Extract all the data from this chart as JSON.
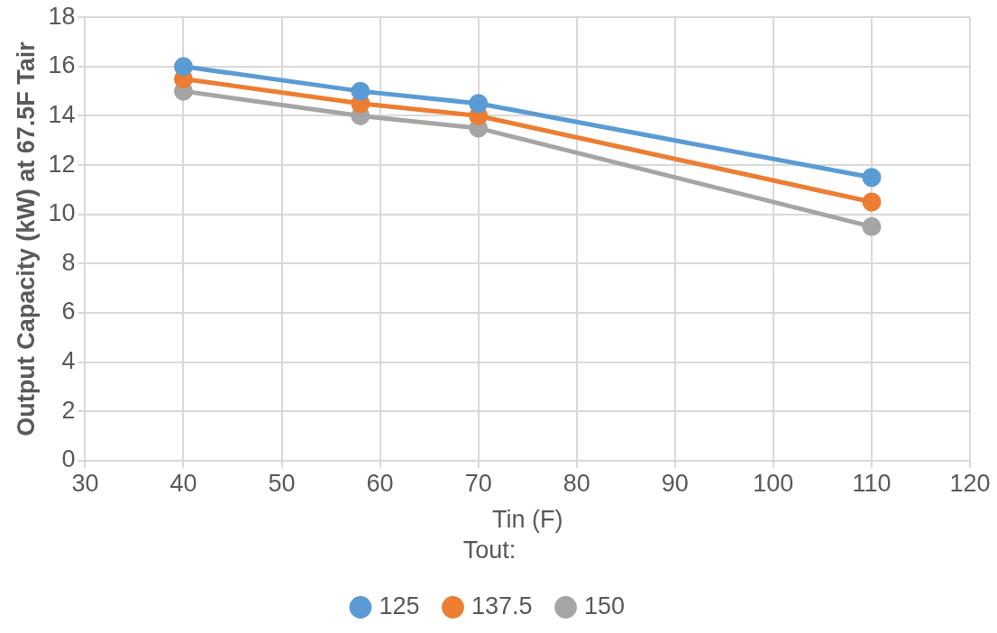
{
  "chart_data": {
    "type": "line",
    "xlabel": "Tin (F)",
    "ylabel": "Output Capacity (kW) at 67.5F Tair",
    "legend_title": "Tout:",
    "x": [
      40,
      58,
      70,
      110
    ],
    "series": [
      {
        "name": "125",
        "color": "#5b9bd5",
        "values": [
          16,
          15,
          14.5,
          11.5
        ]
      },
      {
        "name": "137.5",
        "color": "#ed7d31",
        "values": [
          15.5,
          14.5,
          14,
          10.5
        ]
      },
      {
        "name": "150",
        "color": "#a5a5a5",
        "values": [
          15,
          14,
          13.5,
          9.5
        ]
      }
    ],
    "xlim": [
      30,
      120
    ],
    "xticks": [
      30,
      40,
      50,
      60,
      70,
      80,
      90,
      100,
      110,
      120
    ],
    "ylim": [
      0,
      18
    ],
    "yticks": [
      0,
      2,
      4,
      6,
      8,
      10,
      12,
      14,
      16,
      18
    ],
    "grid": true,
    "legend": "bottom",
    "marker": "circle",
    "line_style": "solid"
  }
}
